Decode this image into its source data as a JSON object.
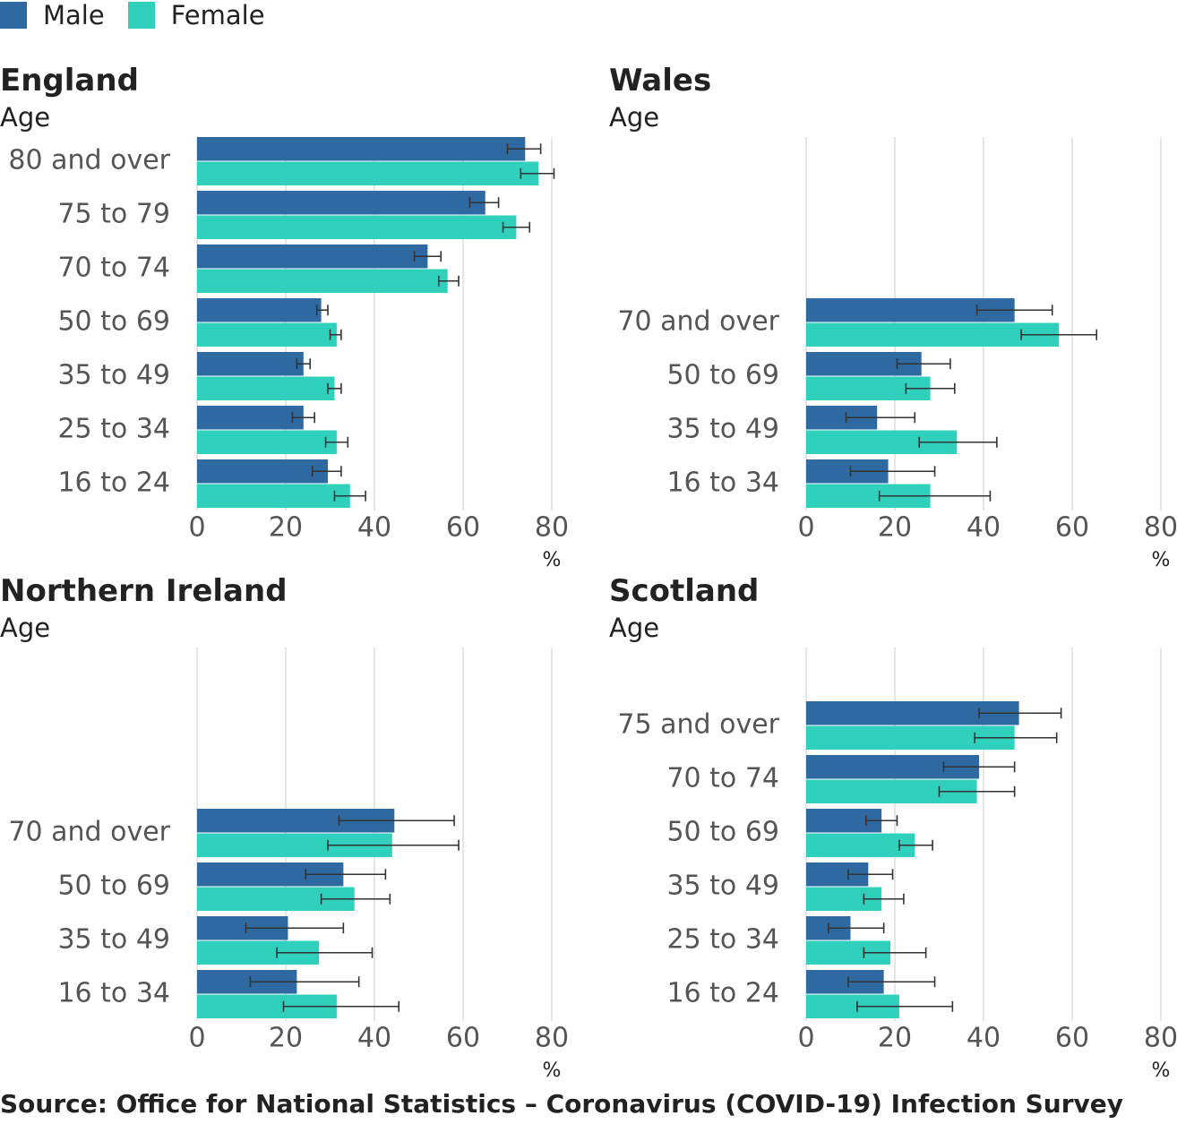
{
  "legend": {
    "male_label": "Male",
    "female_label": "Female"
  },
  "colors": {
    "male": "#2e6aa1",
    "female": "#2fd1bc",
    "grid": "#dddddd",
    "errorbar": "#333333",
    "text": "#555555"
  },
  "chart_data": [
    {
      "type": "bar",
      "orientation": "horizontal",
      "title": "England",
      "ylabel": "Age",
      "xlabel": "%",
      "xlim": [
        0,
        80
      ],
      "xticks": [
        0,
        20,
        40,
        60,
        80
      ],
      "grid": true,
      "categories": [
        "80 and over",
        "75 to 79",
        "70 to 74",
        "50 to 69",
        "35 to 49",
        "25 to 34",
        "16 to 24"
      ],
      "series": [
        {
          "name": "Male",
          "values": [
            74,
            65,
            52,
            28,
            24,
            24,
            29.5
          ],
          "lower": [
            70,
            61.5,
            49,
            27,
            22.5,
            21.5,
            26
          ],
          "upper": [
            77.5,
            68,
            55,
            29.5,
            25.5,
            26.5,
            32.5
          ]
        },
        {
          "name": "Female",
          "values": [
            77,
            72,
            56.5,
            31.5,
            31,
            31.5,
            34.5
          ],
          "lower": [
            73,
            69,
            54.5,
            30,
            29.5,
            29,
            31
          ],
          "upper": [
            80.5,
            75,
            59,
            32.5,
            32.5,
            34,
            38
          ]
        }
      ]
    },
    {
      "type": "bar",
      "orientation": "horizontal",
      "title": "Wales",
      "ylabel": "Age",
      "xlabel": "%",
      "xlim": [
        0,
        80
      ],
      "xticks": [
        0,
        20,
        40,
        60,
        80
      ],
      "grid": true,
      "categories": [
        "70 and over",
        "50 to 69",
        "35 to 49",
        "16 to 34"
      ],
      "series": [
        {
          "name": "Male",
          "values": [
            47,
            26,
            16,
            18.5
          ],
          "lower": [
            38.5,
            20.5,
            9,
            10
          ],
          "upper": [
            55.5,
            32.5,
            24.5,
            29
          ]
        },
        {
          "name": "Female",
          "values": [
            57,
            28,
            34,
            28
          ],
          "lower": [
            48.5,
            22.5,
            25.5,
            16.5
          ],
          "upper": [
            65.5,
            33.5,
            43,
            41.5
          ]
        }
      ]
    },
    {
      "type": "bar",
      "orientation": "horizontal",
      "title": "Northern Ireland",
      "ylabel": "Age",
      "xlabel": "%",
      "xlim": [
        0,
        80
      ],
      "xticks": [
        0,
        20,
        40,
        60,
        80
      ],
      "grid": true,
      "categories": [
        "70 and over",
        "50 to 69",
        "35 to 49",
        "16 to 34"
      ],
      "series": [
        {
          "name": "Male",
          "values": [
            44.5,
            33,
            20.5,
            22.5
          ],
          "lower": [
            32,
            24.5,
            11,
            12
          ],
          "upper": [
            58,
            42.5,
            33,
            36.5
          ]
        },
        {
          "name": "Female",
          "values": [
            44,
            35.5,
            27.5,
            31.5
          ],
          "lower": [
            29.5,
            28,
            18,
            19.5
          ],
          "upper": [
            59,
            43.5,
            39.5,
            45.5
          ]
        }
      ]
    },
    {
      "type": "bar",
      "orientation": "horizontal",
      "title": "Scotland",
      "ylabel": "Age",
      "xlabel": "%",
      "xlim": [
        0,
        80
      ],
      "xticks": [
        0,
        20,
        40,
        60,
        80
      ],
      "grid": true,
      "categories": [
        "75 and over",
        "70 to 74",
        "50 to 69",
        "35 to 49",
        "25 to 34",
        "16 to 24"
      ],
      "series": [
        {
          "name": "Male",
          "values": [
            48,
            39,
            17,
            14,
            10,
            17.5
          ],
          "lower": [
            39,
            31,
            13.5,
            9.5,
            5,
            9.5
          ],
          "upper": [
            57.5,
            47,
            20.5,
            19.5,
            17.5,
            29
          ]
        },
        {
          "name": "Female",
          "values": [
            47,
            38.5,
            24.5,
            17,
            19,
            21
          ],
          "lower": [
            38,
            30,
            21,
            13,
            13,
            11.5
          ],
          "upper": [
            56.5,
            47,
            28.5,
            22,
            27,
            33
          ]
        }
      ]
    }
  ],
  "source": "Source: Office for National Statistics – Coronavirus (COVID-19) Infection Survey"
}
